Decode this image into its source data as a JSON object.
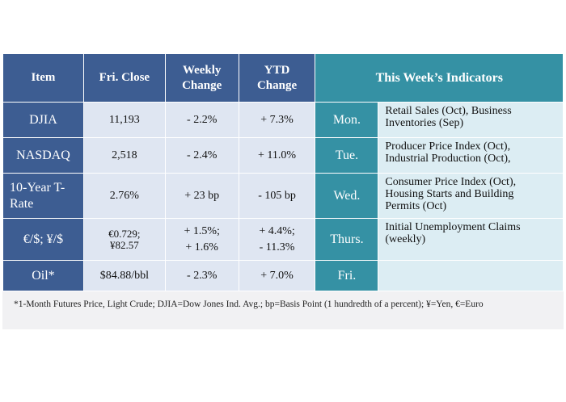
{
  "headers": {
    "item": "Item",
    "fri_close": "Fri. Close",
    "weekly_change": [
      "Weekly",
      "Change"
    ],
    "ytd_change": [
      "YTD",
      "Change"
    ],
    "indicators": "This Week’s Indicators"
  },
  "rows": [
    {
      "item": [
        "DJIA"
      ],
      "close": [
        "11,193"
      ],
      "weekly": [
        "- 2.2%"
      ],
      "ytd": [
        "+ 7.3%"
      ],
      "day": "Mon.",
      "indicators": [
        "Retail Sales (Oct), Business",
        "Inventories (Sep)"
      ]
    },
    {
      "item": [
        "NASDAQ"
      ],
      "close": [
        "2,518"
      ],
      "weekly": [
        "- 2.4%"
      ],
      "ytd": [
        "+ 11.0%"
      ],
      "day": "Tue.",
      "indicators": [
        "Producer Price Index (Oct),",
        "Industrial Production (Oct),"
      ]
    },
    {
      "item": [
        "10-Year T-",
        "Rate"
      ],
      "close": [
        "2.76%"
      ],
      "weekly": [
        "+ 23 bp"
      ],
      "ytd": [
        "- 105 bp"
      ],
      "day": "Wed.",
      "indicators": [
        "Consumer Price Index (Oct),",
        "Housing Starts and Building",
        "Permits (Oct)"
      ]
    },
    {
      "item": [
        "€/$; ¥/$"
      ],
      "close": [
        "€0.729;",
        "¥82.57"
      ],
      "weekly": [
        "+ 1.5%;",
        "+ 1.6%"
      ],
      "ytd": [
        "+ 4.4%;",
        "- 11.3%"
      ],
      "day": "Thurs.",
      "indicators": [
        "Initial Unemployment Claims",
        "(weekly)"
      ]
    },
    {
      "item": [
        "Oil*"
      ],
      "close": [
        "$84.88/bbl"
      ],
      "weekly": [
        "- 2.3%"
      ],
      "ytd": [
        "+ 7.0%"
      ],
      "day": "Fri.",
      "indicators": []
    }
  ],
  "footnote": "*1-Month Futures Price, Light Crude; DJIA=Dow Jones Ind. Avg.; bp=Basis Point (1 hundredth of a percent); ¥=Yen, €=Euro"
}
